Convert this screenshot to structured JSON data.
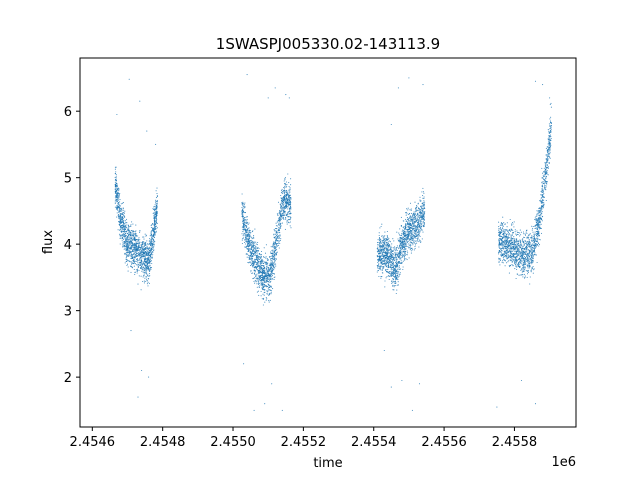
{
  "chart_data": {
    "type": "scatter",
    "title": "1SWASPJ005330.02-143113.9",
    "xlabel": "time",
    "ylabel": "flux",
    "x_offset_label": "1e6",
    "xlim": [
      2454565,
      2455975
    ],
    "ylim": [
      1.25,
      6.8
    ],
    "x_ticks": [
      2454600,
      2454800,
      2455000,
      2455200,
      2455400,
      2455600,
      2455800
    ],
    "x_tick_labels": [
      "2.4546",
      "2.4548",
      "2.4550",
      "2.4552",
      "2.4554",
      "2.4556",
      "2.4558"
    ],
    "y_ticks": [
      2,
      3,
      4,
      5,
      6
    ],
    "y_tick_labels": [
      "2",
      "3",
      "4",
      "5",
      "6"
    ],
    "grid": false,
    "legend": "none",
    "marker_color": "#1f77b4",
    "seasons": [
      {
        "x_range": [
          2454665,
          2454785
        ],
        "trend": [
          [
            2454665,
            4.9
          ],
          [
            2454680,
            4.4
          ],
          [
            2454700,
            4.0
          ],
          [
            2454720,
            3.95
          ],
          [
            2454740,
            3.8
          ],
          [
            2454760,
            3.75
          ],
          [
            2454772,
            4.1
          ],
          [
            2454785,
            4.6
          ]
        ]
      },
      {
        "x_range": [
          2455025,
          2455165
        ],
        "trend": [
          [
            2455025,
            4.5
          ],
          [
            2455045,
            4.0
          ],
          [
            2455065,
            3.75
          ],
          [
            2455085,
            3.5
          ],
          [
            2455105,
            3.5
          ],
          [
            2455125,
            4.1
          ],
          [
            2455145,
            4.7
          ],
          [
            2455165,
            4.6
          ]
        ]
      },
      {
        "x_range": [
          2455410,
          2455545
        ],
        "trend": [
          [
            2455410,
            3.85
          ],
          [
            2455440,
            3.85
          ],
          [
            2455460,
            3.6
          ],
          [
            2455480,
            4.0
          ],
          [
            2455500,
            4.2
          ],
          [
            2455525,
            4.3
          ],
          [
            2455545,
            4.5
          ]
        ]
      },
      {
        "x_range": [
          2455755,
          2455905
        ],
        "trend": [
          [
            2455755,
            4.05
          ],
          [
            2455790,
            3.95
          ],
          [
            2455825,
            3.85
          ],
          [
            2455850,
            3.9
          ],
          [
            2455870,
            4.3
          ],
          [
            2455890,
            5.1
          ],
          [
            2455905,
            5.8
          ]
        ]
      }
    ],
    "outliers": [
      [
        2454670,
        5.95
      ],
      [
        2454705,
        6.48
      ],
      [
        2454735,
        6.15
      ],
      [
        2454755,
        5.7
      ],
      [
        2454780,
        5.5
      ],
      [
        2454740,
        2.1
      ],
      [
        2454710,
        2.7
      ],
      [
        2454730,
        1.7
      ],
      [
        2454760,
        2.0
      ],
      [
        2455040,
        6.55
      ],
      [
        2455100,
        6.2
      ],
      [
        2455120,
        6.35
      ],
      [
        2455150,
        6.25
      ],
      [
        2455160,
        6.2
      ],
      [
        2455030,
        2.2
      ],
      [
        2455060,
        1.5
      ],
      [
        2455090,
        1.6
      ],
      [
        2455110,
        1.9
      ],
      [
        2455140,
        1.5
      ],
      [
        2455470,
        6.35
      ],
      [
        2455500,
        6.5
      ],
      [
        2455540,
        6.4
      ],
      [
        2455450,
        5.8
      ],
      [
        2455430,
        2.4
      ],
      [
        2455450,
        1.85
      ],
      [
        2455480,
        1.95
      ],
      [
        2455510,
        1.5
      ],
      [
        2455530,
        1.9
      ],
      [
        2455860,
        6.45
      ],
      [
        2455880,
        6.4
      ],
      [
        2455900,
        6.2
      ],
      [
        2455750,
        1.55
      ],
      [
        2455860,
        1.6
      ],
      [
        2455820,
        1.95
      ]
    ]
  }
}
